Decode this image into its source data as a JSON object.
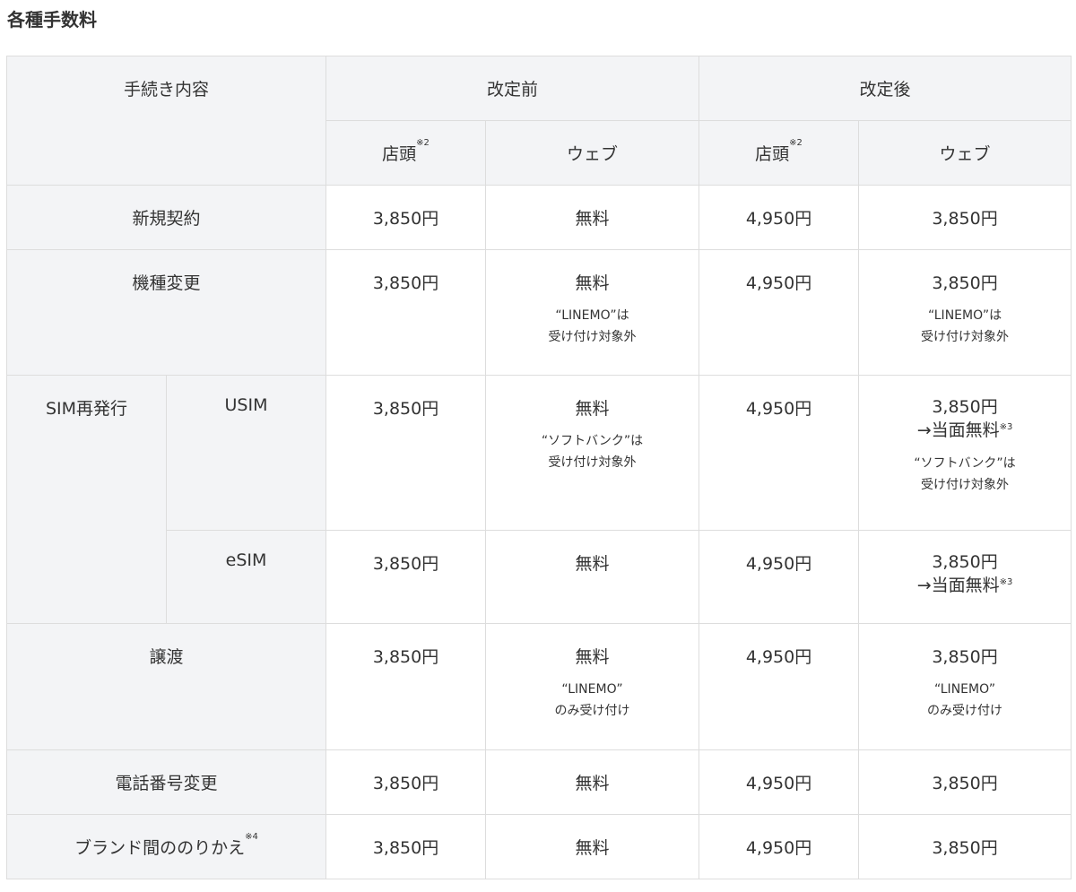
{
  "title": "各種手数料",
  "header": {
    "procedure": "手続き内容",
    "before": "改定前",
    "after": "改定後",
    "store": "店頭",
    "store_note": "※2",
    "web": "ウェブ"
  },
  "rows": {
    "new": {
      "label": "新規契約",
      "b_store": "3,850円",
      "b_web": "無料",
      "a_store": "4,950円",
      "a_web": "3,850円"
    },
    "change": {
      "label": "機種変更",
      "b_store": "3,850円",
      "b_web": "無料",
      "b_web_note1": "“LINEMO”は",
      "b_web_note2": "受け付け対象外",
      "a_store": "4,950円",
      "a_web": "3,850円",
      "a_web_note1": "“LINEMO”は",
      "a_web_note2": "受け付け対象外"
    },
    "sim_group": "SIM再発行",
    "usim": {
      "label": "USIM",
      "b_store": "3,850円",
      "b_web": "無料",
      "b_web_note1": "“ソフトバンク”は",
      "b_web_note2": "受け付け対象外",
      "a_store": "4,950円",
      "a_web": "3,850円",
      "a_web_sub": "→当面無料",
      "a_web_sub_note": "※3",
      "a_web_note1": "“ソフトバンク”は",
      "a_web_note2": "受け付け対象外"
    },
    "esim": {
      "label": "eSIM",
      "b_store": "3,850円",
      "b_web": "無料",
      "a_store": "4,950円",
      "a_web": "3,850円",
      "a_web_sub": "→当面無料",
      "a_web_sub_note": "※3"
    },
    "transfer": {
      "label": "譲渡",
      "b_store": "3,850円",
      "b_web": "無料",
      "b_web_note1": "“LINEMO”",
      "b_web_note2": "のみ受け付け",
      "a_store": "4,950円",
      "a_web": "3,850円",
      "a_web_note1": "“LINEMO”",
      "a_web_note2": "のみ受け付け"
    },
    "number": {
      "label": "電話番号変更",
      "b_store": "3,850円",
      "b_web": "無料",
      "a_store": "4,950円",
      "a_web": "3,850円"
    },
    "brand": {
      "label": "ブランド間ののりかえ",
      "label_note": "※4",
      "b_store": "3,850円",
      "b_web": "無料",
      "a_store": "4,950円",
      "a_web": "3,850円"
    }
  }
}
